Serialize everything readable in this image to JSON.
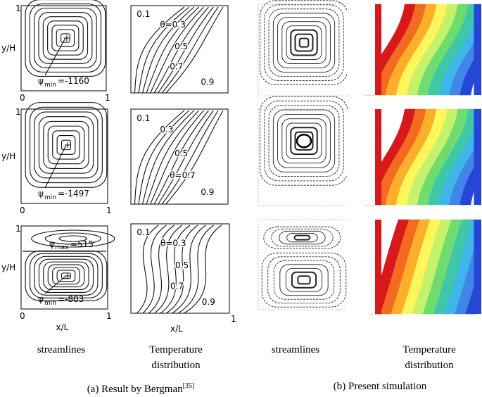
{
  "rows": [
    {
      "axis_y": "y/H",
      "axis_x": "",
      "tick_y_top": "1",
      "tick_origin": "0",
      "tick_x_end": "1",
      "psi_min": {
        "symbol": "ψ",
        "sub": "min",
        "value": "=-1160"
      },
      "psi_max": null,
      "isotherms": [
        "0.1",
        "θ=0.3",
        "0.5",
        "0.7",
        "0.9"
      ]
    },
    {
      "axis_y": "y/H",
      "axis_x": "",
      "tick_y_top": "1",
      "tick_origin": "0",
      "tick_x_end": "1",
      "psi_min": {
        "symbol": "ψ",
        "sub": "min",
        "value": "=-1497"
      },
      "psi_max": null,
      "isotherms": [
        "0.1",
        "0.3",
        "0.5",
        "θ=0.7",
        "0.9"
      ]
    },
    {
      "axis_y": "y/H",
      "axis_x": "x/L",
      "tick_y_top": "1",
      "tick_origin": "0",
      "tick_x_end": "1",
      "psi_min": {
        "symbol": "ψ",
        "sub": "min",
        "value": "=-803"
      },
      "psi_max": {
        "symbol": "ψ",
        "sub": "max",
        "value": "=515"
      },
      "isotherms": [
        "0.1",
        "θ=0.3",
        "0.5",
        "0.7",
        "0.9"
      ],
      "temp_axis_x": "x/L"
    }
  ],
  "column_labels": {
    "col1": "streamlines",
    "col2": "Temperature\ndistribution",
    "col3": "streamlines",
    "col4": "Temperature\ndistribution"
  },
  "captions": {
    "left": "(a) Result by Bergman",
    "left_ref": "[35]",
    "right": "(b) Present simulation"
  },
  "colormap": [
    "#d7191c",
    "#f26b1f",
    "#fdae2b",
    "#fef65b",
    "#c6f26b",
    "#6edc6e",
    "#3fc8a8",
    "#3fb6e8",
    "#3f86e8",
    "#2646d6"
  ]
}
